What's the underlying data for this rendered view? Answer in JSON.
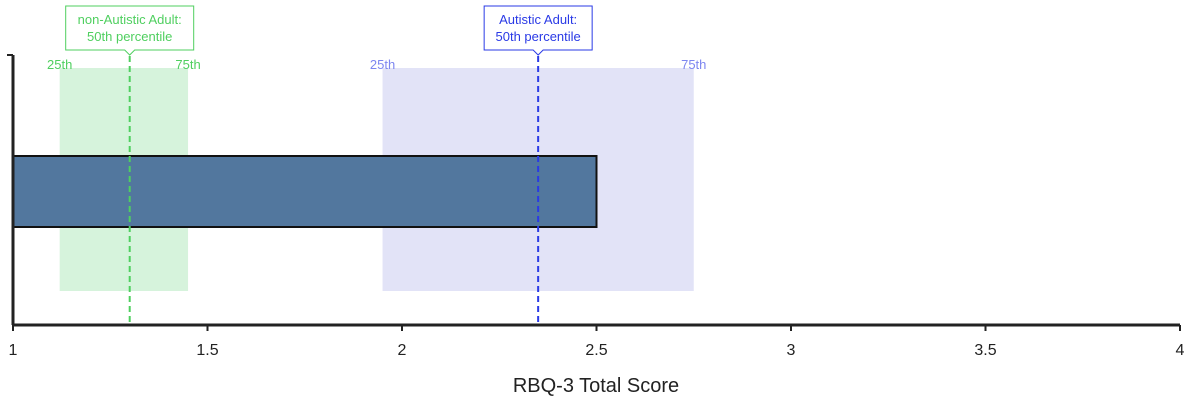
{
  "chart_data": {
    "type": "bar",
    "orientation": "horizontal",
    "xlabel": "RBQ-3 Total Score",
    "xlim": [
      1,
      4
    ],
    "xticks": [
      1,
      1.5,
      2,
      2.5,
      3,
      3.5,
      4
    ],
    "xtick_labels": [
      "1",
      "1.5",
      "2",
      "2.5",
      "3",
      "3.5",
      "4"
    ],
    "bar": {
      "value": 2.5,
      "color": "#52779e"
    },
    "reference_bands": [
      {
        "group": "non-Autistic Adult",
        "p25": 1.12,
        "p50": 1.3,
        "p75": 1.45,
        "p25_label": "25th",
        "p75_label": "75th",
        "callout_line1": "non-Autistic Adult:",
        "callout_line2": "50th percentile",
        "fill": "#d6f3dc",
        "line_color": "#4fcf5f",
        "label_color": "#4fcf5f"
      },
      {
        "group": "Autistic Adult",
        "p25": 1.95,
        "p50": 2.35,
        "p75": 2.75,
        "p25_label": "25th",
        "p75_label": "75th",
        "callout_line1": "Autistic Adult:",
        "callout_line2": "50th percentile",
        "fill": "#e2e3f7",
        "line_color": "#2a3ae6",
        "label_color": "#7d86f0"
      }
    ],
    "grid": false,
    "legend": "none"
  }
}
